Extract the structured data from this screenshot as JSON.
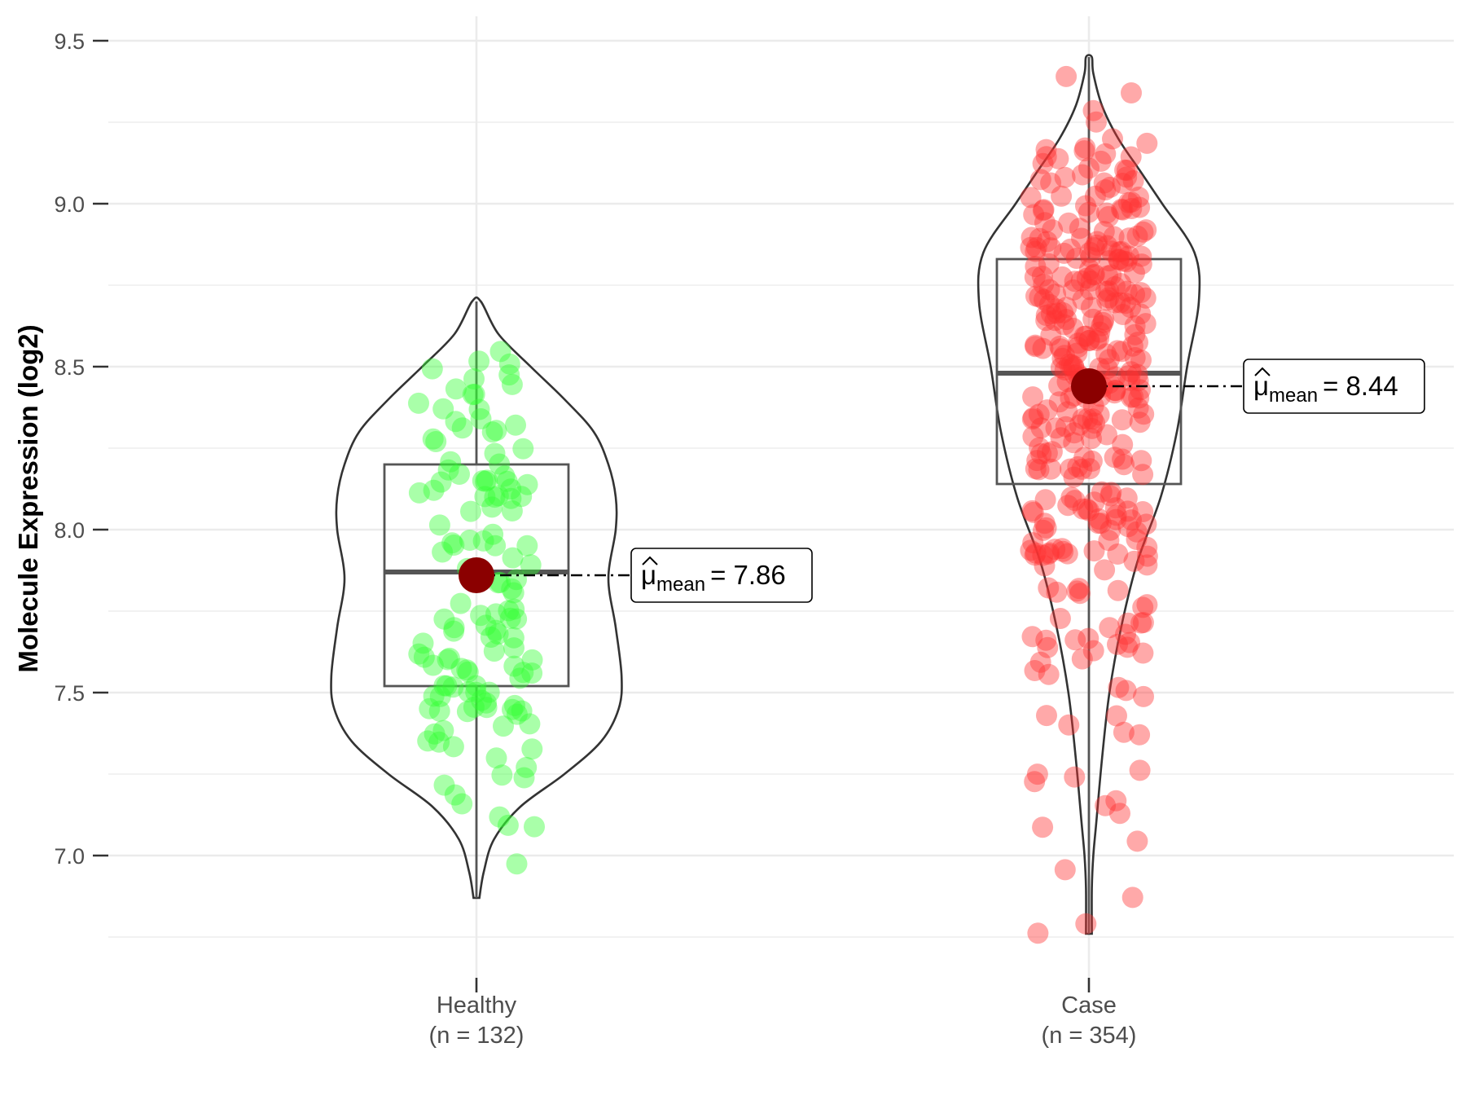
{
  "chart_data": {
    "type": "violin",
    "title": "",
    "xlabel": "",
    "ylabel": "Molecule Expression (log2)",
    "ylim": [
      6.7,
      9.6
    ],
    "y_ticks": [
      7.0,
      7.5,
      8.0,
      8.5,
      9.0,
      9.5
    ],
    "grid": true,
    "legend": "none",
    "mean_symbol": "μ",
    "mean_subscript": "mean",
    "groups": [
      {
        "name": "Healthy",
        "n_label": "(n = 132)",
        "n": 132,
        "color": "#33ff33",
        "min": 6.87,
        "q1": 7.52,
        "median": 7.87,
        "q3": 8.2,
        "max": 8.7,
        "mean": 7.86,
        "mean_label": "7.86",
        "density": [
          [
            6.87,
            0.02
          ],
          [
            6.95,
            0.05
          ],
          [
            7.05,
            0.12
          ],
          [
            7.15,
            0.3
          ],
          [
            7.25,
            0.6
          ],
          [
            7.35,
            0.85
          ],
          [
            7.45,
            0.97
          ],
          [
            7.55,
            0.99
          ],
          [
            7.7,
            0.95
          ],
          [
            7.85,
            0.9
          ],
          [
            8.0,
            0.95
          ],
          [
            8.1,
            0.95
          ],
          [
            8.2,
            0.9
          ],
          [
            8.3,
            0.8
          ],
          [
            8.4,
            0.6
          ],
          [
            8.5,
            0.37
          ],
          [
            8.6,
            0.15
          ],
          [
            8.7,
            0.03
          ]
        ]
      },
      {
        "name": "Case",
        "n_label": "(n = 354)",
        "n": 354,
        "color": "#ff3333",
        "min": 6.76,
        "q1": 8.14,
        "median": 8.48,
        "q3": 8.83,
        "max": 9.45,
        "mean": 8.44,
        "mean_label": "8.44",
        "density": [
          [
            6.76,
            0.02
          ],
          [
            6.9,
            0.02
          ],
          [
            7.0,
            0.03
          ],
          [
            7.1,
            0.05
          ],
          [
            7.3,
            0.09
          ],
          [
            7.5,
            0.14
          ],
          [
            7.7,
            0.22
          ],
          [
            7.9,
            0.33
          ],
          [
            8.1,
            0.49
          ],
          [
            8.3,
            0.6
          ],
          [
            8.5,
            0.67
          ],
          [
            8.7,
            0.75
          ],
          [
            8.85,
            0.72
          ],
          [
            9.0,
            0.5
          ],
          [
            9.1,
            0.35
          ],
          [
            9.2,
            0.2
          ],
          [
            9.3,
            0.09
          ],
          [
            9.4,
            0.03
          ],
          [
            9.45,
            0.02
          ]
        ]
      }
    ]
  }
}
